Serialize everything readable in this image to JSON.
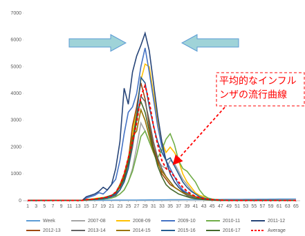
{
  "chart_data": {
    "type": "line",
    "x": [
      1,
      2,
      3,
      4,
      5,
      6,
      7,
      8,
      9,
      10,
      11,
      12,
      13,
      14,
      15,
      16,
      17,
      18,
      19,
      20,
      21,
      22,
      23,
      24,
      25,
      26,
      27,
      28,
      29,
      30,
      31,
      32,
      33,
      34,
      35,
      36,
      37,
      38,
      39,
      40,
      41,
      42,
      43,
      44,
      45,
      46,
      47,
      48,
      49,
      50,
      51,
      52,
      53,
      54,
      55,
      56,
      57,
      58,
      59,
      60,
      61,
      62,
      63,
      64,
      65
    ],
    "xlim": [
      0,
      66
    ],
    "xticks": [
      1,
      3,
      5,
      7,
      9,
      11,
      13,
      15,
      17,
      19,
      21,
      23,
      25,
      27,
      29,
      31,
      33,
      35,
      37,
      39,
      41,
      43,
      45,
      47,
      49,
      51,
      53,
      55,
      57,
      59,
      61,
      63,
      65
    ],
    "ylim": [
      0,
      7000
    ],
    "yticks": [
      0,
      1000,
      2000,
      3000,
      4000,
      5000,
      6000,
      7000
    ],
    "grid": false,
    "annotation": [
      "平均的なインフル",
      "ンザの流行曲線"
    ],
    "series": [
      {
        "name": "Week",
        "color": "#5b9bd5",
        "values": [
          1,
          2,
          3,
          4,
          5,
          6,
          7,
          8,
          9,
          10,
          11,
          12,
          13,
          14,
          15,
          16,
          17,
          18,
          19,
          20,
          21,
          22,
          23,
          24,
          25,
          26,
          27,
          28,
          29,
          30,
          31,
          32,
          33,
          34,
          35,
          36,
          37,
          38,
          39,
          40,
          41,
          42,
          43,
          44,
          45,
          46,
          47,
          48,
          49,
          50,
          51,
          52,
          53,
          54,
          55,
          56,
          57,
          58,
          59,
          60,
          61,
          62,
          63,
          64,
          65
        ]
      },
      {
        "name": "2007-08",
        "color": "#a5a5a5",
        "values": [
          10,
          10,
          10,
          10,
          10,
          10,
          10,
          10,
          10,
          10,
          10,
          10,
          10,
          10,
          20,
          30,
          40,
          50,
          60,
          80,
          100,
          150,
          250,
          400,
          700,
          1200,
          2000,
          2900,
          2600,
          2200,
          1800,
          1500,
          1300,
          1200,
          1500,
          1400,
          1100,
          800,
          600,
          400,
          250,
          150,
          100,
          60,
          40,
          30,
          20,
          15,
          10,
          10,
          10,
          10,
          10,
          10,
          10,
          10,
          10,
          10,
          10,
          10,
          10,
          10,
          10,
          10,
          10
        ]
      },
      {
        "name": "2008-09",
        "color": "#ffc000",
        "values": [
          10,
          10,
          10,
          10,
          10,
          10,
          10,
          10,
          10,
          10,
          10,
          10,
          10,
          10,
          50,
          60,
          80,
          100,
          120,
          150,
          200,
          300,
          500,
          900,
          1500,
          2500,
          3500,
          4500,
          5100,
          5000,
          4000,
          3000,
          2200,
          1800,
          2000,
          1800,
          1500,
          1000,
          700,
          500,
          300,
          200,
          150,
          100,
          60,
          40,
          30,
          20,
          10,
          10,
          10,
          10,
          10,
          10,
          10,
          10,
          10,
          10,
          10,
          10,
          10,
          10,
          10,
          10,
          10
        ]
      },
      {
        "name": "2009-10",
        "color": "#4472c4",
        "values": [
          10,
          10,
          10,
          10,
          10,
          10,
          10,
          10,
          10,
          10,
          10,
          10,
          10,
          10,
          100,
          150,
          200,
          300,
          250,
          400,
          600,
          800,
          1500,
          2500,
          3300,
          3500,
          4000,
          5000,
          5700,
          4800,
          3800,
          2800,
          2000,
          1500,
          1200,
          900,
          600,
          400,
          300,
          200,
          150,
          100,
          80,
          60,
          40,
          30,
          20,
          15,
          10,
          10,
          10,
          10,
          10,
          10,
          10,
          10,
          10,
          10,
          10,
          10,
          10,
          10,
          10,
          10,
          10
        ]
      },
      {
        "name": "2010-11",
        "color": "#70ad47",
        "values": [
          10,
          10,
          10,
          10,
          10,
          10,
          10,
          10,
          10,
          10,
          10,
          10,
          10,
          10,
          20,
          30,
          40,
          50,
          60,
          80,
          100,
          150,
          250,
          400,
          700,
          1100,
          1700,
          2400,
          2600,
          2200,
          1800,
          1600,
          1900,
          2300,
          2500,
          2100,
          1500,
          1200,
          1100,
          900,
          700,
          400,
          200,
          100,
          60,
          40,
          30,
          20,
          10,
          10,
          10,
          10,
          10,
          10,
          10,
          10,
          10,
          10,
          10,
          10,
          10,
          10,
          10,
          10,
          10
        ]
      },
      {
        "name": "2011-12",
        "color": "#264478",
        "values": [
          10,
          10,
          10,
          10,
          10,
          10,
          10,
          10,
          10,
          10,
          10,
          10,
          10,
          10,
          150,
          200,
          250,
          350,
          500,
          400,
          600,
          1200,
          2200,
          4200,
          3600,
          4800,
          5400,
          5800,
          6250,
          5600,
          4400,
          3200,
          2200,
          1500,
          1000,
          700,
          500,
          350,
          250,
          200,
          150,
          100,
          80,
          60,
          40,
          30,
          20,
          15,
          10,
          10,
          10,
          10,
          10,
          10,
          10,
          10,
          10,
          10,
          10,
          10,
          10,
          10,
          10,
          10,
          10
        ]
      },
      {
        "name": "2012-13",
        "color": "#9e480e",
        "values": [
          10,
          10,
          10,
          10,
          10,
          10,
          10,
          10,
          10,
          10,
          10,
          10,
          10,
          10,
          40,
          50,
          60,
          80,
          100,
          150,
          200,
          300,
          500,
          900,
          1500,
          2800,
          3500,
          4400,
          3800,
          2800,
          2000,
          1500,
          1000,
          800,
          600,
          500,
          400,
          300,
          200,
          150,
          100,
          80,
          60,
          40,
          30,
          20,
          15,
          10,
          10,
          10,
          10,
          10,
          10,
          10,
          10,
          10,
          10,
          10,
          10,
          10,
          10,
          10,
          10,
          10,
          10
        ]
      },
      {
        "name": "2013-14",
        "color": "#636363",
        "values": [
          10,
          10,
          10,
          10,
          10,
          10,
          10,
          10,
          10,
          10,
          10,
          10,
          10,
          10,
          30,
          40,
          50,
          60,
          80,
          100,
          150,
          200,
          400,
          700,
          1200,
          2000,
          3000,
          3900,
          3700,
          3000,
          2200,
          1600,
          1200,
          900,
          700,
          500,
          400,
          300,
          200,
          150,
          100,
          80,
          60,
          40,
          30,
          20,
          15,
          10,
          10,
          10,
          10,
          10,
          10,
          10,
          10,
          10,
          10,
          10,
          10,
          10,
          10,
          10,
          10,
          10,
          10
        ]
      },
      {
        "name": "2014-15",
        "color": "#997300",
        "values": [
          10,
          10,
          10,
          10,
          10,
          10,
          10,
          10,
          10,
          10,
          10,
          10,
          10,
          10,
          30,
          40,
          50,
          70,
          100,
          150,
          200,
          300,
          600,
          1000,
          1600,
          2400,
          2600,
          3400,
          3000,
          2400,
          1800,
          1400,
          1100,
          900,
          700,
          500,
          400,
          300,
          250,
          200,
          150,
          100,
          60,
          40,
          30,
          20,
          15,
          10,
          10,
          10,
          10,
          10,
          10,
          10,
          10,
          10,
          10,
          10,
          10,
          10,
          10,
          10,
          10,
          10,
          10
        ]
      },
      {
        "name": "2015-16",
        "color": "#255e91",
        "values": [
          10,
          10,
          10,
          10,
          10,
          10,
          10,
          10,
          10,
          10,
          10,
          10,
          10,
          10,
          30,
          40,
          50,
          60,
          80,
          100,
          150,
          250,
          400,
          700,
          1200,
          2200,
          3200,
          4600,
          4400,
          3500,
          2800,
          2200,
          1800,
          1500,
          1600,
          1300,
          1000,
          700,
          500,
          350,
          250,
          150,
          100,
          60,
          40,
          30,
          20,
          15,
          10,
          10,
          10,
          10,
          10,
          10,
          10,
          10,
          10,
          10,
          10,
          10,
          10,
          10,
          10,
          10,
          10
        ]
      },
      {
        "name": "2016-17",
        "color": "#43682b",
        "values": [
          10,
          10,
          10,
          10,
          10,
          10,
          10,
          10,
          10,
          10,
          10,
          10,
          10,
          10,
          30,
          40,
          60,
          80,
          100,
          150,
          200,
          300,
          500,
          800,
          1400,
          2200,
          3200,
          3700,
          3300,
          2600,
          1900,
          1300,
          900,
          600,
          450,
          350,
          250,
          200,
          150,
          100,
          80,
          60,
          40,
          30,
          20,
          15,
          10,
          10,
          10,
          10,
          10,
          10,
          10,
          10,
          10,
          10,
          10,
          10,
          10,
          10,
          10,
          10,
          10,
          10,
          10
        ]
      },
      {
        "name": "Average",
        "color": "#ff0000",
        "dashed": true,
        "values": [
          10,
          10,
          10,
          10,
          10,
          10,
          10,
          10,
          10,
          10,
          10,
          10,
          10,
          10,
          40,
          50,
          60,
          80,
          110,
          140,
          200,
          320,
          560,
          1000,
          1600,
          2200,
          2900,
          3900,
          4300,
          3700,
          2800,
          2100,
          1500,
          1200,
          1100,
          900,
          700,
          500,
          350,
          250,
          160,
          110,
          80,
          55,
          40,
          30,
          20,
          15,
          10,
          10,
          10,
          10,
          10,
          10,
          10,
          10,
          10,
          10,
          10,
          10,
          10,
          10,
          10,
          10,
          10
        ]
      }
    ]
  }
}
